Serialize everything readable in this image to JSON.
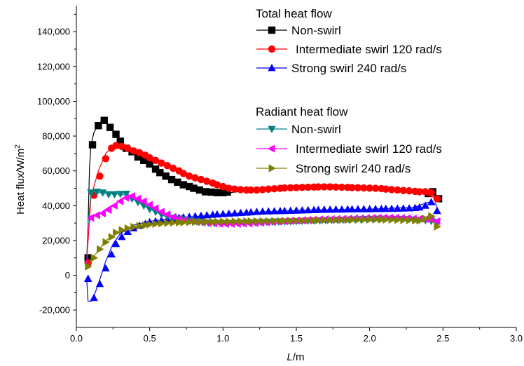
{
  "chart_data": {
    "type": "line",
    "xlabel_italic": "L",
    "xlabel_rest": "/m",
    "ylabel_main": "Heat flux/W/m",
    "ylabel_sup": "2",
    "xlim": [
      0.0,
      3.0
    ],
    "ylim": [
      -30000,
      155000
    ],
    "xticks": [
      0.0,
      0.5,
      1.0,
      1.5,
      2.0,
      2.5,
      3.0
    ],
    "xtick_labels": [
      "0.0",
      "0.5",
      "1.0",
      "1.5",
      "2.0",
      "2.5",
      "3.0"
    ],
    "yticks": [
      -20000,
      0,
      20000,
      40000,
      60000,
      80000,
      100000,
      120000,
      140000
    ],
    "ytick_labels": [
      "-20,000",
      "0",
      "20,000",
      "40,000",
      "60,000",
      "80,000",
      "100,000",
      "120,000",
      "140,000"
    ],
    "legend_groups": [
      {
        "title": "Total heat flow",
        "series_indices": [
          0,
          1,
          2
        ]
      },
      {
        "title": "Radiant heat flow",
        "series_indices": [
          3,
          4,
          5
        ]
      }
    ],
    "series": [
      {
        "name": "Non-swirl",
        "color": "#000000",
        "marker": "square",
        "line_x": [
          0.07,
          0.08,
          0.09,
          0.1,
          0.12,
          0.15,
          0.18,
          0.2,
          0.25,
          0.3,
          0.4,
          0.5,
          0.6,
          0.8,
          1.0,
          1.2,
          1.5,
          1.7,
          2.0,
          2.2,
          2.4,
          2.47
        ],
        "line_y": [
          8000,
          30000,
          62000,
          75000,
          82000,
          87000,
          89000,
          88000,
          83000,
          77000,
          69000,
          63000,
          57000,
          50000,
          47000,
          49000,
          51500,
          52000,
          51000,
          50000,
          47500,
          44000
        ],
        "x": [
          0.08,
          0.11,
          0.15,
          0.19,
          0.23,
          0.27,
          0.3,
          0.34,
          0.38,
          0.42,
          0.46,
          0.5,
          0.54,
          0.57,
          0.61,
          0.65,
          0.69,
          0.73,
          0.77,
          0.8,
          0.84,
          0.88,
          0.92,
          0.96,
          1.0,
          1.03,
          2.4,
          2.43,
          2.47
        ],
        "y": [
          10000,
          75000,
          86000,
          89000,
          85000,
          81000,
          77000,
          73000,
          71000,
          68000,
          66000,
          64000,
          61000,
          59000,
          57000,
          55000,
          53500,
          52000,
          51000,
          50000,
          49000,
          48000,
          47800,
          47500,
          47500,
          47800,
          47000,
          48000,
          44000
        ]
      },
      {
        "name": "Intermediate swirl 120 rad/s",
        "color": "#ff0000",
        "marker": "circle",
        "line_x": [
          0.07,
          0.1,
          0.15,
          0.2,
          0.25,
          0.3,
          0.4,
          0.6,
          0.8,
          1.0,
          1.2,
          1.5,
          1.8,
          2.0,
          2.3,
          2.47
        ],
        "line_y": [
          7000,
          45000,
          60000,
          70000,
          74000,
          73500,
          71000,
          64000,
          57000,
          52000,
          49000,
          49500,
          50500,
          50000,
          48500,
          44000
        ],
        "x": [
          0.08,
          0.12,
          0.16,
          0.2,
          0.24,
          0.27,
          0.31,
          0.35,
          0.39,
          0.43,
          0.47,
          0.5,
          0.54,
          0.58,
          0.62,
          0.66,
          0.7,
          0.73,
          0.77,
          0.81,
          0.85,
          0.89,
          0.93,
          0.96,
          1.0,
          1.04,
          1.08,
          1.12,
          1.16,
          1.19,
          1.23,
          1.27,
          1.31,
          1.35,
          1.39,
          1.42,
          1.46,
          1.5,
          1.54,
          1.58,
          1.62,
          1.65,
          1.69,
          1.73,
          1.77,
          1.81,
          1.85,
          1.88,
          1.92,
          1.96,
          2.0,
          2.04,
          2.08,
          2.11,
          2.15,
          2.19,
          2.23,
          2.27,
          2.31,
          2.34,
          2.38,
          2.42,
          2.46
        ],
        "y": [
          7000,
          46000,
          57000,
          67000,
          73000,
          74500,
          74000,
          73000,
          71500,
          70500,
          69000,
          67500,
          66000,
          64500,
          63000,
          61500,
          60000,
          58500,
          57000,
          56000,
          55000,
          54000,
          53000,
          52000,
          51000,
          50000,
          49500,
          49200,
          49000,
          49000,
          49000,
          49200,
          49500,
          49700,
          50000,
          50200,
          50300,
          50400,
          50500,
          50600,
          50700,
          50800,
          50800,
          50800,
          50700,
          50600,
          50500,
          50400,
          50300,
          50200,
          50100,
          50000,
          49800,
          49500,
          49200,
          49000,
          48700,
          48500,
          48200,
          48000,
          48000,
          47500,
          44000
        ]
      },
      {
        "name": "Strong swirl 240 rad/s",
        "color": "#0000ff",
        "marker": "triangle-up",
        "line_x": [
          0.07,
          0.08,
          0.1,
          0.12,
          0.15,
          0.2,
          0.25,
          0.3,
          0.4,
          0.5,
          0.7,
          1.0,
          1.3,
          1.6,
          2.0,
          2.3,
          2.4,
          2.45,
          2.47
        ],
        "line_y": [
          -2000,
          -15000,
          -15000,
          -12000,
          -5000,
          8000,
          18000,
          24000,
          29000,
          31000,
          33000,
          35000,
          36500,
          37500,
          38000,
          39000,
          42000,
          41000,
          37000
        ],
        "x": [
          0.08,
          0.12,
          0.16,
          0.2,
          0.24,
          0.27,
          0.31,
          0.35,
          0.39,
          0.43,
          0.47,
          0.5,
          0.54,
          0.58,
          0.62,
          0.66,
          0.7,
          0.73,
          0.77,
          0.81,
          0.85,
          0.89,
          0.93,
          0.96,
          1.0,
          1.04,
          1.08,
          1.12,
          1.16,
          1.19,
          1.23,
          1.27,
          1.31,
          1.35,
          1.39,
          1.42,
          1.46,
          1.5,
          1.54,
          1.58,
          1.62,
          1.65,
          1.69,
          1.73,
          1.77,
          1.81,
          1.85,
          1.88,
          1.92,
          1.96,
          2.0,
          2.04,
          2.08,
          2.11,
          2.15,
          2.19,
          2.23,
          2.27,
          2.31,
          2.34,
          2.38,
          2.42,
          2.46
        ],
        "y": [
          -2000,
          -13000,
          -5000,
          4000,
          12000,
          18000,
          22000,
          25000,
          27000,
          28500,
          29500,
          30500,
          31000,
          31500,
          32000,
          32500,
          33000,
          33300,
          33600,
          33900,
          34200,
          34500,
          34800,
          35000,
          35200,
          35400,
          35600,
          35800,
          36000,
          36200,
          36400,
          36600,
          36700,
          36800,
          36900,
          37000,
          37100,
          37200,
          37300,
          37400,
          37500,
          37600,
          37700,
          37700,
          37800,
          37800,
          37900,
          37900,
          38000,
          38000,
          38000,
          38100,
          38100,
          38200,
          38200,
          38300,
          38400,
          38500,
          38700,
          39000,
          40000,
          42000,
          37000
        ]
      },
      {
        "name": "Non-swirl",
        "color": "#008080",
        "marker": "triangle-down",
        "line_x": [
          0.07,
          0.08,
          0.1,
          0.15,
          0.2,
          0.3,
          0.35,
          0.4,
          0.5,
          0.6,
          0.8,
          1.0,
          1.3,
          1.6,
          2.0,
          2.3,
          2.47
        ],
        "line_y": [
          5000,
          30000,
          46000,
          47500,
          47000,
          46500,
          46000,
          43000,
          38000,
          34000,
          31000,
          30000,
          30500,
          31500,
          32500,
          32000,
          30500
        ],
        "x": [
          0.1,
          0.14,
          0.18,
          0.22,
          0.26,
          0.3,
          0.34,
          0.38,
          0.42,
          0.46,
          0.5,
          0.54,
          0.58,
          0.62,
          0.66,
          0.7,
          0.74,
          0.78,
          0.82,
          0.86,
          0.9,
          0.94,
          0.98,
          1.02,
          1.06,
          1.1,
          1.14,
          1.18,
          1.22,
          1.26,
          1.3,
          1.34,
          1.38,
          1.42,
          1.46,
          1.5,
          1.54,
          1.58,
          1.62,
          1.66,
          1.7,
          1.74,
          1.78,
          1.82,
          1.86,
          1.9,
          1.94,
          1.98,
          2.02,
          2.06,
          2.1,
          2.14,
          2.18,
          2.22,
          2.26,
          2.3,
          2.34,
          2.38,
          2.42,
          2.46
        ],
        "y": [
          47500,
          48000,
          47500,
          46500,
          46500,
          46700,
          46800,
          44000,
          42000,
          40000,
          38000,
          36500,
          35000,
          34000,
          33000,
          32500,
          32000,
          31500,
          31000,
          30500,
          30200,
          30000,
          30000,
          30000,
          30000,
          30100,
          30200,
          30300,
          30400,
          30500,
          30600,
          30700,
          30800,
          30900,
          31000,
          31100,
          31200,
          31300,
          31400,
          31500,
          31600,
          31700,
          31800,
          31900,
          32000,
          32100,
          32200,
          32300,
          32400,
          32500,
          32500,
          32500,
          32400,
          32300,
          32200,
          32000,
          31800,
          31600,
          31200,
          30500
        ]
      },
      {
        "name": "Intermediate swirl 120 rad/s",
        "color": "#ff00ff",
        "marker": "triangle-left",
        "line_x": [
          0.07,
          0.08,
          0.1,
          0.15,
          0.2,
          0.3,
          0.35,
          0.4,
          0.5,
          0.6,
          0.8,
          1.0,
          1.3,
          1.6,
          2.0,
          2.3,
          2.47
        ],
        "line_y": [
          4000,
          28000,
          33000,
          35000,
          38000,
          43000,
          45500,
          45000,
          40000,
          35000,
          31000,
          29000,
          29500,
          31000,
          32500,
          32000,
          31000
        ],
        "x": [
          0.1,
          0.14,
          0.18,
          0.22,
          0.26,
          0.3,
          0.34,
          0.38,
          0.42,
          0.46,
          0.5,
          0.54,
          0.58,
          0.62,
          0.66,
          0.7,
          0.74,
          0.78,
          0.82,
          0.86,
          0.9,
          0.94,
          0.98,
          1.02,
          1.06,
          1.1,
          1.14,
          1.18,
          1.22,
          1.26,
          1.3,
          1.34,
          1.38,
          1.42,
          1.46,
          1.5,
          1.54,
          1.58,
          1.62,
          1.66,
          1.7,
          1.74,
          1.78,
          1.82,
          1.86,
          1.9,
          1.94,
          1.98,
          2.02,
          2.06,
          2.1,
          2.14,
          2.18,
          2.22,
          2.26,
          2.3,
          2.34,
          2.38,
          2.42,
          2.46
        ],
        "y": [
          33000,
          34500,
          35500,
          37500,
          40000,
          42500,
          44500,
          45500,
          44000,
          42500,
          40500,
          38500,
          36500,
          35000,
          33500,
          32500,
          31800,
          31200,
          30700,
          30300,
          30000,
          29800,
          29600,
          29500,
          29500,
          29600,
          29700,
          29800,
          30000,
          30200,
          30400,
          30600,
          30800,
          31000,
          31200,
          31400,
          31600,
          31800,
          32000,
          32100,
          32200,
          32300,
          32400,
          32500,
          32600,
          32700,
          32800,
          32900,
          33000,
          33100,
          33100,
          33100,
          33000,
          32900,
          32800,
          32600,
          32400,
          32200,
          32000,
          31000
        ]
      },
      {
        "name": "Strong swirl 240 rad/s",
        "color": "#808000",
        "marker": "triangle-right",
        "line_x": [
          0.07,
          0.1,
          0.15,
          0.2,
          0.3,
          0.4,
          0.5,
          0.6,
          0.8,
          1.0,
          1.3,
          1.6,
          2.0,
          2.3,
          2.4,
          2.47
        ],
        "line_y": [
          4000,
          9000,
          14000,
          20000,
          25000,
          27500,
          29000,
          30000,
          30500,
          30800,
          31000,
          31500,
          32000,
          31500,
          33000,
          28000
        ],
        "x": [
          0.08,
          0.12,
          0.16,
          0.2,
          0.24,
          0.27,
          0.31,
          0.35,
          0.39,
          0.43,
          0.47,
          0.5,
          0.54,
          0.58,
          0.62,
          0.66,
          0.7,
          0.73,
          0.77,
          0.81,
          0.85,
          0.89,
          0.93,
          0.96,
          1.0,
          1.04,
          1.08,
          1.12,
          1.16,
          1.19,
          1.23,
          1.27,
          1.31,
          1.35,
          1.39,
          1.42,
          1.46,
          1.5,
          1.54,
          1.58,
          1.62,
          1.65,
          1.69,
          1.73,
          1.77,
          1.81,
          1.85,
          1.88,
          1.92,
          1.96,
          2.0,
          2.04,
          2.08,
          2.11,
          2.15,
          2.19,
          2.23,
          2.27,
          2.31,
          2.34,
          2.38,
          2.42,
          2.46
        ],
        "y": [
          5000,
          10000,
          15000,
          19000,
          22000,
          24500,
          26000,
          27000,
          27800,
          28300,
          28800,
          29200,
          29500,
          29800,
          30000,
          30200,
          30300,
          30400,
          30500,
          30600,
          30600,
          30700,
          30700,
          30800,
          30800,
          30800,
          30900,
          30900,
          31000,
          31000,
          31000,
          31100,
          31100,
          31200,
          31200,
          31300,
          31300,
          31400,
          31400,
          31500,
          31500,
          31600,
          31600,
          31700,
          31700,
          31800,
          31800,
          31800,
          31900,
          31900,
          32000,
          32000,
          32000,
          31900,
          31900,
          31800,
          31700,
          31600,
          31500,
          31500,
          32500,
          34000,
          28000
        ]
      }
    ]
  }
}
